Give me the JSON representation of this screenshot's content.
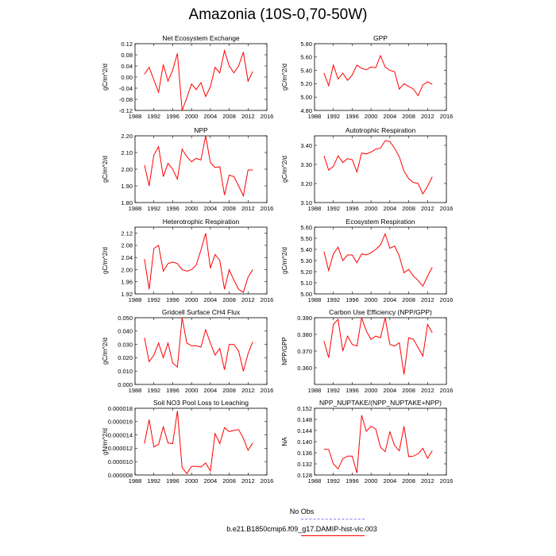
{
  "title": "Amazonia (10S-0,70-50W)",
  "legend": {
    "obs_label": "No Obs",
    "model_label": "b.e21.B1850cmip6.f09_g17.DAMIP-hist-vlc.003",
    "obs_color": "#8080ff",
    "model_color": "#ff0000"
  },
  "chart_data": [
    {
      "type": "line",
      "title": "Net Ecosystem Exchange",
      "ylabel": "gC/m^2/d",
      "xlim": [
        1988,
        2016
      ],
      "ylim": [
        -0.12,
        0.12
      ],
      "xticks": [
        1988,
        1992,
        1996,
        2000,
        2004,
        2008,
        2012,
        2016
      ],
      "yticks": [
        "-0.12",
        "-0.08",
        "-0.04",
        "0.00",
        "0.04",
        "0.08",
        "0.12"
      ],
      "yticks_values": [
        -0.12,
        -0.08,
        -0.04,
        0.0,
        0.04,
        0.08,
        0.12
      ],
      "series": [
        {
          "name": "b.e21.B1850cmip6.f09_g17.DAMIP-hist-vlc.003",
          "x": [
            1990,
            1991,
            1992,
            1993,
            1994,
            1995,
            1996,
            1997,
            1998,
            1999,
            2000,
            2001,
            2002,
            2003,
            2004,
            2005,
            2006,
            2007,
            2008,
            2009,
            2010,
            2011,
            2012,
            2013
          ],
          "y": [
            0.01,
            0.035,
            -0.01,
            -0.055,
            0.045,
            -0.015,
            0.025,
            0.085,
            -0.12,
            -0.075,
            -0.025,
            -0.045,
            -0.02,
            -0.07,
            -0.035,
            0.035,
            0.015,
            0.095,
            0.04,
            0.015,
            0.04,
            0.09,
            -0.015,
            0.02
          ]
        }
      ]
    },
    {
      "type": "line",
      "title": "GPP",
      "ylabel": "gC/m^2/d",
      "xlim": [
        1988,
        2016
      ],
      "ylim": [
        4.8,
        5.8
      ],
      "xticks": [
        1988,
        1992,
        1996,
        2000,
        2004,
        2008,
        2012,
        2016
      ],
      "yticks": [
        "4.80",
        "5.00",
        "5.20",
        "5.40",
        "5.60",
        "5.80"
      ],
      "yticks_values": [
        4.8,
        5.0,
        5.2,
        5.4,
        5.6,
        5.8
      ],
      "series": [
        {
          "name": "b.e21.B1850cmip6.f09_g17.DAMIP-hist-vlc.003",
          "x": [
            1990,
            1991,
            1992,
            1993,
            1994,
            1995,
            1996,
            1997,
            1998,
            1999,
            2000,
            2001,
            2002,
            2003,
            2004,
            2005,
            2006,
            2007,
            2008,
            2009,
            2010,
            2011,
            2012,
            2013
          ],
          "y": [
            5.36,
            5.17,
            5.48,
            5.27,
            5.36,
            5.25,
            5.33,
            5.48,
            5.43,
            5.41,
            5.45,
            5.44,
            5.62,
            5.45,
            5.4,
            5.38,
            5.12,
            5.2,
            5.16,
            5.12,
            5.02,
            5.18,
            5.23,
            5.19
          ]
        }
      ]
    },
    {
      "type": "line",
      "title": "NPP",
      "ylabel": "gC/m^2/d",
      "xlim": [
        1988,
        2016
      ],
      "ylim": [
        1.8,
        2.2
      ],
      "xticks": [
        1988,
        1992,
        1996,
        2000,
        2004,
        2008,
        2012,
        2016
      ],
      "yticks": [
        "1.80",
        "1.90",
        "2.00",
        "2.10",
        "2.20"
      ],
      "yticks_values": [
        1.8,
        1.9,
        2.0,
        2.1,
        2.2
      ],
      "series": [
        {
          "name": "b.e21.B1850cmip6.f09_g17.DAMIP-hist-vlc.003",
          "x": [
            1990,
            1991,
            1992,
            1993,
            1994,
            1995,
            1996,
            1997,
            1998,
            1999,
            2000,
            2001,
            2002,
            2003,
            2004,
            2005,
            2006,
            2007,
            2008,
            2009,
            2010,
            2011,
            2012,
            2013
          ],
          "y": [
            2.025,
            1.9,
            2.085,
            2.135,
            1.955,
            2.035,
            2.0,
            1.94,
            2.12,
            2.075,
            2.045,
            2.065,
            2.055,
            2.2,
            2.04,
            2.01,
            2.015,
            1.845,
            1.965,
            1.955,
            1.9,
            1.84,
            1.995,
            1.995
          ]
        }
      ]
    },
    {
      "type": "line",
      "title": "Autotrophic Respiration",
      "ylabel": "gC/m^2/d",
      "xlim": [
        1988,
        2016
      ],
      "ylim": [
        3.1,
        3.45
      ],
      "xticks": [
        1988,
        1992,
        1996,
        2000,
        2004,
        2008,
        2012,
        2016
      ],
      "yticks": [
        "3.10",
        "3.20",
        "3.30",
        "3.40"
      ],
      "yticks_values": [
        3.1,
        3.2,
        3.3,
        3.4
      ],
      "series": [
        {
          "name": "b.e21.B1850cmip6.f09_g17.DAMIP-hist-vlc.003",
          "x": [
            1990,
            1991,
            1992,
            1993,
            1994,
            1995,
            1996,
            1997,
            1998,
            1999,
            2000,
            2001,
            2002,
            2003,
            2004,
            2005,
            2006,
            2007,
            2008,
            2009,
            2010,
            2011,
            2012,
            2013
          ],
          "y": [
            3.345,
            3.27,
            3.29,
            3.345,
            3.31,
            3.33,
            3.325,
            3.26,
            3.36,
            3.355,
            3.365,
            3.38,
            3.385,
            3.425,
            3.42,
            3.385,
            3.34,
            3.265,
            3.225,
            3.205,
            3.2,
            3.145,
            3.185,
            3.235
          ]
        }
      ]
    },
    {
      "type": "line",
      "title": "Heterotrophic Respiration",
      "ylabel": "gC/m^2/d",
      "xlim": [
        1988,
        2016
      ],
      "ylim": [
        1.92,
        2.14
      ],
      "xticks": [
        1988,
        1992,
        1996,
        2000,
        2004,
        2008,
        2012,
        2016
      ],
      "yticks": [
        "1.92",
        "1.96",
        "2.00",
        "2.04",
        "2.08",
        "2.12"
      ],
      "yticks_values": [
        1.92,
        1.96,
        2.0,
        2.04,
        2.08,
        2.12
      ],
      "series": [
        {
          "name": "b.e21.B1850cmip6.f09_g17.DAMIP-hist-vlc.003",
          "x": [
            1990,
            1991,
            1992,
            1993,
            1994,
            1995,
            1996,
            1997,
            1998,
            1999,
            2000,
            2001,
            2002,
            2003,
            2004,
            2005,
            2006,
            2007,
            2008,
            2009,
            2010,
            2011,
            2012,
            2013
          ],
          "y": [
            2.035,
            1.935,
            2.07,
            2.08,
            1.995,
            2.02,
            2.025,
            2.02,
            2.0,
            1.995,
            2.0,
            2.015,
            2.065,
            2.12,
            2.005,
            2.05,
            2.03,
            1.935,
            2.0,
            1.965,
            1.935,
            1.925,
            1.975,
            2.0
          ]
        }
      ]
    },
    {
      "type": "line",
      "title": "Ecosystem Respiration",
      "ylabel": "gC/m^2/d",
      "xlim": [
        1988,
        2016
      ],
      "ylim": [
        5.0,
        5.6
      ],
      "xticks": [
        1988,
        1992,
        1996,
        2000,
        2004,
        2008,
        2012,
        2016
      ],
      "yticks": [
        "5.00",
        "5.10",
        "5.20",
        "5.30",
        "5.40",
        "5.50",
        "5.60"
      ],
      "yticks_values": [
        5.0,
        5.1,
        5.2,
        5.3,
        5.4,
        5.5,
        5.6
      ],
      "series": [
        {
          "name": "b.e21.B1850cmip6.f09_g17.DAMIP-hist-vlc.003",
          "x": [
            1990,
            1991,
            1992,
            1993,
            1994,
            1995,
            1996,
            1997,
            1998,
            1999,
            2000,
            2001,
            2002,
            2003,
            2004,
            2005,
            2006,
            2007,
            2008,
            2009,
            2010,
            2011,
            2012,
            2013
          ],
          "y": [
            5.38,
            5.21,
            5.36,
            5.42,
            5.3,
            5.35,
            5.35,
            5.28,
            5.36,
            5.35,
            5.37,
            5.4,
            5.44,
            5.54,
            5.41,
            5.43,
            5.34,
            5.19,
            5.22,
            5.16,
            5.12,
            5.07,
            5.16,
            5.24
          ]
        }
      ]
    },
    {
      "type": "line",
      "title": "Gridcell Surface CH4 Flux",
      "ylabel": "gC/m^2/d",
      "xlim": [
        1988,
        2016
      ],
      "ylim": [
        0.0,
        0.05
      ],
      "xticks": [
        1988,
        1992,
        1996,
        2000,
        2004,
        2008,
        2012,
        2016
      ],
      "yticks": [
        "0.000",
        "0.010",
        "0.020",
        "0.030",
        "0.040",
        "0.050"
      ],
      "yticks_values": [
        0.0,
        0.01,
        0.02,
        0.03,
        0.04,
        0.05
      ],
      "series": [
        {
          "name": "b.e21.B1850cmip6.f09_g17.DAMIP-hist-vlc.003",
          "x": [
            1990,
            1991,
            1992,
            1993,
            1994,
            1995,
            1996,
            1997,
            1998,
            1999,
            2000,
            2001,
            2002,
            2003,
            2004,
            2005,
            2006,
            2007,
            2008,
            2009,
            2010,
            2011,
            2012,
            2013
          ],
          "y": [
            0.035,
            0.017,
            0.022,
            0.031,
            0.02,
            0.031,
            0.016,
            0.013,
            0.05,
            0.031,
            0.029,
            0.029,
            0.028,
            0.041,
            0.031,
            0.022,
            0.027,
            0.011,
            0.03,
            0.03,
            0.025,
            0.01,
            0.023,
            0.032
          ]
        }
      ]
    },
    {
      "type": "line",
      "title": "Carbon Use Efficiency (NPP/GPP)",
      "ylabel": "NPP/GPP",
      "xlim": [
        1988,
        2016
      ],
      "ylim": [
        0.35,
        0.39
      ],
      "xticks": [
        1988,
        1992,
        1996,
        2000,
        2004,
        2008,
        2012,
        2016
      ],
      "yticks": [
        "0.360",
        "0.370",
        "0.380",
        "0.390"
      ],
      "yticks_values": [
        0.36,
        0.37,
        0.38,
        0.39
      ],
      "series": [
        {
          "name": "b.e21.B1850cmip6.f09_g17.DAMIP-hist-vlc.003",
          "x": [
            1990,
            1991,
            1992,
            1993,
            1994,
            1995,
            1996,
            1997,
            1998,
            1999,
            2000,
            2001,
            2002,
            2003,
            2004,
            2005,
            2006,
            2007,
            2008,
            2009,
            2010,
            2011,
            2012,
            2013
          ],
          "y": [
            0.376,
            0.366,
            0.386,
            0.389,
            0.37,
            0.379,
            0.374,
            0.373,
            0.39,
            0.382,
            0.377,
            0.379,
            0.378,
            0.39,
            0.374,
            0.373,
            0.375,
            0.356,
            0.378,
            0.377,
            0.372,
            0.367,
            0.386,
            0.381
          ]
        }
      ]
    },
    {
      "type": "line",
      "title": "Soil NO3 Pool Loss to Leaching",
      "ylabel": "gN/m^2/d",
      "xlim": [
        1988,
        2016
      ],
      "ylim": [
        8e-06,
        1.8e-05
      ],
      "xticks": [
        1988,
        1992,
        1996,
        2000,
        2004,
        2008,
        2012,
        2016
      ],
      "yticks": [
        "0.000008",
        "0.000010",
        "0.000012",
        "0.000014",
        "0.000016",
        "0.000018"
      ],
      "yticks_values": [
        8e-06,
        1e-05,
        1.2e-05,
        1.4e-05,
        1.6e-05,
        1.8e-05
      ],
      "series": [
        {
          "name": "b.e21.B1850cmip6.f09_g17.DAMIP-hist-vlc.003",
          "x": [
            1990,
            1991,
            1992,
            1993,
            1994,
            1995,
            1996,
            1997,
            1998,
            1999,
            2000,
            2001,
            2002,
            2003,
            2004,
            2005,
            2006,
            2007,
            2008,
            2009,
            2010,
            2011,
            2012,
            2013
          ],
          "y": [
            1.27e-05,
            1.63e-05,
            1.22e-05,
            1.26e-05,
            1.52e-05,
            1.28e-05,
            1.27e-05,
            1.76e-05,
            9.1e-06,
            8.2e-06,
            9.3e-06,
            9.3e-06,
            9.2e-06,
            9.8e-06,
            8.6e-06,
            1.42e-05,
            1.27e-05,
            1.51e-05,
            1.45e-05,
            1.47e-05,
            1.48e-05,
            1.35e-05,
            1.17e-05,
            1.28e-05
          ]
        }
      ]
    },
    {
      "type": "line",
      "title": "NPP_NUPTAKE/(NPP_NUPTAKE+NPP)",
      "ylabel": "NA",
      "xlim": [
        1988,
        2016
      ],
      "ylim": [
        0.128,
        0.152
      ],
      "xticks": [
        1988,
        1992,
        1996,
        2000,
        2004,
        2008,
        2012,
        2016
      ],
      "yticks": [
        "0.128",
        "0.132",
        "0.136",
        "0.140",
        "0.144",
        "0.148",
        "0.152"
      ],
      "yticks_values": [
        0.128,
        0.132,
        0.136,
        0.14,
        0.144,
        0.148,
        0.152
      ],
      "series": [
        {
          "name": "b.e21.B1850cmip6.f09_g17.DAMIP-hist-vlc.003",
          "x": [
            1990,
            1991,
            1992,
            1993,
            1994,
            1995,
            1996,
            1997,
            1998,
            1999,
            2000,
            2001,
            2002,
            2003,
            2004,
            2005,
            2006,
            2007,
            2008,
            2009,
            2010,
            2011,
            2012,
            2013
          ],
          "y": [
            0.1373,
            0.1372,
            0.132,
            0.1302,
            0.1338,
            0.1348,
            0.1348,
            0.1287,
            0.1495,
            0.1437,
            0.1455,
            0.1445,
            0.138,
            0.1364,
            0.1435,
            0.1386,
            0.1367,
            0.1455,
            0.1346,
            0.1348,
            0.1356,
            0.1376,
            0.134,
            0.1367
          ]
        }
      ]
    }
  ]
}
